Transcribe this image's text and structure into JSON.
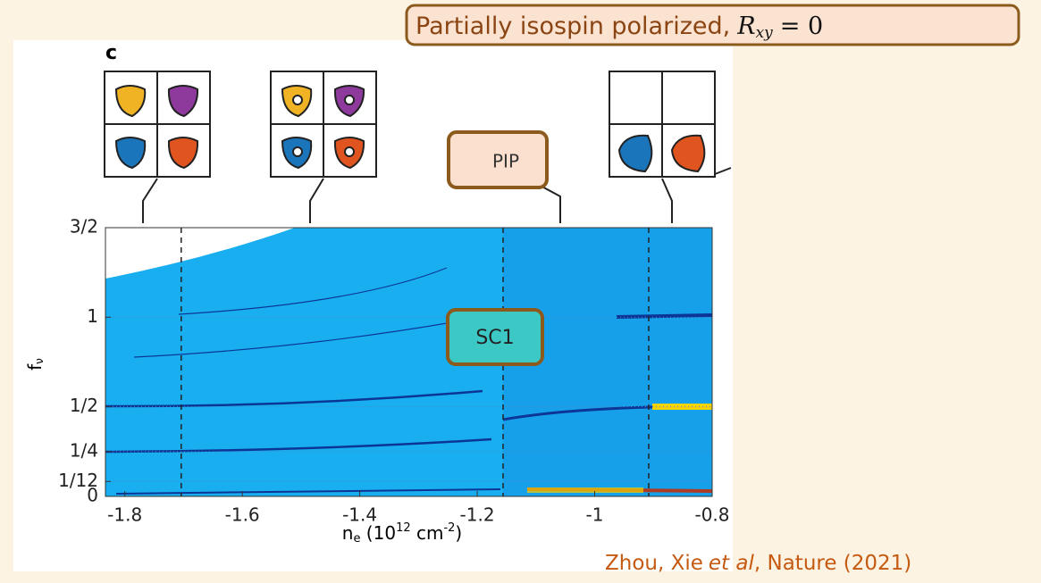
{
  "chart_data": {
    "type": "heatmap",
    "panel_label": "c",
    "annotation": {
      "text": "Partially isospin polarized,",
      "math_base": "R",
      "math_sub": "xy",
      "math_rest": "= 0"
    },
    "labels": [
      "PIP",
      "SC1"
    ],
    "citation": {
      "authors": "Zhou, Xie",
      "etal": "et al",
      "journal": ",  Nature (2021)"
    },
    "xlabel": {
      "base": "n",
      "sub": "e",
      "mid": " (10",
      "sup1": "12",
      "unit": " cm",
      "sup2": "-2",
      "end": ")"
    },
    "ylabel": {
      "base": "f",
      "sub": "ν"
    },
    "xlim": [
      -1.833,
      -0.8
    ],
    "xticks": [
      -1.8,
      -1.6,
      -1.4,
      -1.2,
      -1,
      -0.8
    ],
    "ylim": [
      0,
      1.5
    ],
    "yticks": [
      0,
      {
        "value": 0.0833,
        "label": "1/12"
      },
      {
        "value": 0.25,
        "label": "1/4"
      },
      {
        "value": 0.5,
        "label": "1/2"
      },
      1,
      {
        "value": 1.5,
        "label": "3/2"
      }
    ],
    "vlines": [
      -1.704,
      -1.156,
      -0.908
    ],
    "grid": true
  }
}
